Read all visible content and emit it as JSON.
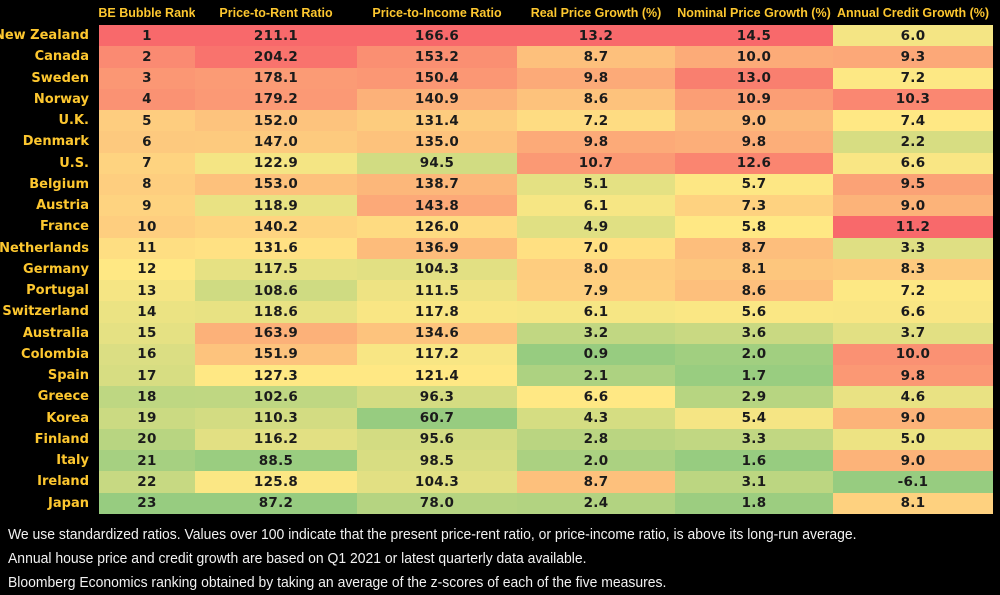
{
  "chart_data": {
    "type": "heatmap",
    "columns": [
      "BE Bubble Rank",
      "Price-to-Rent Ratio",
      "Price-to-Income Ratio",
      "Real Price Growth (%)",
      "Nominal Price Growth (%)",
      "Annual Credit Growth (%)"
    ],
    "rows": [
      {
        "country": "New Zealand",
        "values": [
          1,
          211.1,
          166.6,
          13.2,
          14.5,
          6.0
        ]
      },
      {
        "country": "Canada",
        "values": [
          2,
          204.2,
          153.2,
          8.7,
          10.0,
          9.3
        ]
      },
      {
        "country": "Sweden",
        "values": [
          3,
          178.1,
          150.4,
          9.8,
          13.0,
          7.2
        ]
      },
      {
        "country": "Norway",
        "values": [
          4,
          179.2,
          140.9,
          8.6,
          10.9,
          10.3
        ]
      },
      {
        "country": "U.K.",
        "values": [
          5,
          152.0,
          131.4,
          7.2,
          9.0,
          7.4
        ]
      },
      {
        "country": "Denmark",
        "values": [
          6,
          147.0,
          135.0,
          9.8,
          9.8,
          2.2
        ]
      },
      {
        "country": "U.S.",
        "values": [
          7,
          122.9,
          94.5,
          10.7,
          12.6,
          6.6
        ]
      },
      {
        "country": "Belgium",
        "values": [
          8,
          153.0,
          138.7,
          5.1,
          5.7,
          9.5
        ]
      },
      {
        "country": "Austria",
        "values": [
          9,
          118.9,
          143.8,
          6.1,
          7.3,
          9.0
        ]
      },
      {
        "country": "France",
        "values": [
          10,
          140.2,
          126.0,
          4.9,
          5.8,
          11.2
        ]
      },
      {
        "country": "Netherlands",
        "values": [
          11,
          131.6,
          136.9,
          7.0,
          8.7,
          3.3
        ]
      },
      {
        "country": "Germany",
        "values": [
          12,
          117.5,
          104.3,
          8.0,
          8.1,
          8.3
        ]
      },
      {
        "country": "Portugal",
        "values": [
          13,
          108.6,
          111.5,
          7.9,
          8.6,
          7.2
        ]
      },
      {
        "country": "Switzerland",
        "values": [
          14,
          118.6,
          117.8,
          6.1,
          5.6,
          6.6
        ]
      },
      {
        "country": "Australia",
        "values": [
          15,
          163.9,
          134.6,
          3.2,
          3.6,
          3.7
        ]
      },
      {
        "country": "Colombia",
        "values": [
          16,
          151.9,
          117.2,
          0.9,
          2.0,
          10.0
        ]
      },
      {
        "country": "Spain",
        "values": [
          17,
          127.3,
          121.4,
          2.1,
          1.7,
          9.8
        ]
      },
      {
        "country": "Greece",
        "values": [
          18,
          102.6,
          96.3,
          6.6,
          2.9,
          4.6
        ]
      },
      {
        "country": "Korea",
        "values": [
          19,
          110.3,
          60.7,
          4.3,
          5.4,
          9.0
        ]
      },
      {
        "country": "Finland",
        "values": [
          20,
          116.2,
          95.6,
          2.8,
          3.3,
          5.0
        ]
      },
      {
        "country": "Italy",
        "values": [
          21,
          88.5,
          98.5,
          2.0,
          1.6,
          9.0
        ]
      },
      {
        "country": "Ireland",
        "values": [
          22,
          125.8,
          104.3,
          8.7,
          3.1,
          -6.1
        ]
      },
      {
        "country": "Japan",
        "values": [
          23,
          87.2,
          78.0,
          2.4,
          1.8,
          8.1
        ]
      }
    ],
    "color_scale": {
      "high_color": "#f8696b",
      "mid_color": "#ffe884",
      "low_color": "#97cc80",
      "midpoint": "column median",
      "high_means": "more bubbly"
    }
  },
  "footnotes": [
    "We use standardized ratios. Values over 100 indicate that the present price-rent ratio, or price-income ratio, is above its long-run average.",
    "Annual house price and credit growth are based on Q1 2021 or latest quarterly data available.",
    "Bloomberg Economics ranking obtained by taking an average of the z-scores of each of the five measures."
  ],
  "colors": {
    "background": "#000000",
    "label_yellow": "#fdc72f",
    "cell_text": "#1b1b1b",
    "footnote_text": "#f2f2f2"
  }
}
